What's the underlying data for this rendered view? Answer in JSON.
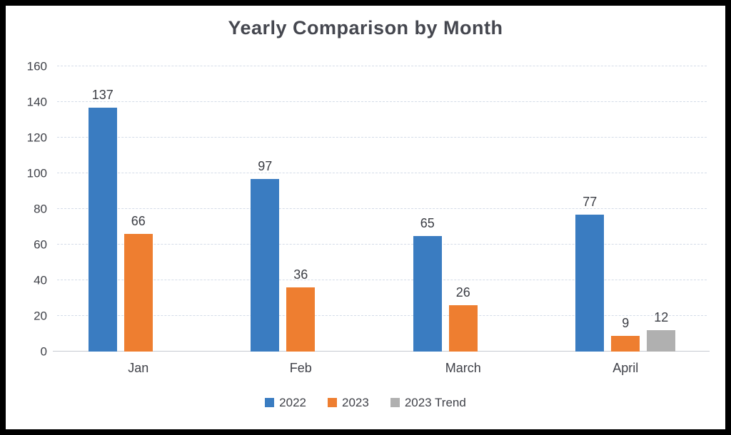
{
  "chart_data": {
    "type": "bar",
    "title": "Yearly Comparison by Month",
    "categories": [
      "Jan",
      "Feb",
      "March",
      "April"
    ],
    "series": [
      {
        "name": "2022",
        "color": "#3A7CC1",
        "values": [
          137,
          97,
          65,
          77
        ]
      },
      {
        "name": "2023",
        "color": "#EE7E30",
        "values": [
          66,
          36,
          26,
          9
        ]
      },
      {
        "name": "2023 Trend",
        "color": "#B0B0B0",
        "values": [
          null,
          null,
          null,
          12
        ]
      }
    ],
    "ylim": [
      0,
      160
    ],
    "ytick_step": 20,
    "yticks": [
      0,
      20,
      40,
      60,
      80,
      100,
      120,
      140,
      160
    ],
    "grid": "horizontal-dashed",
    "legend_position": "bottom-center",
    "data_labels": true
  },
  "colors": {
    "text": "#3F4148",
    "title_text": "#45474F",
    "gridline": "#D4DCE8",
    "axis_line": "#C6CAD1",
    "frame_border": "#000000",
    "background": "#FFFFFF"
  }
}
